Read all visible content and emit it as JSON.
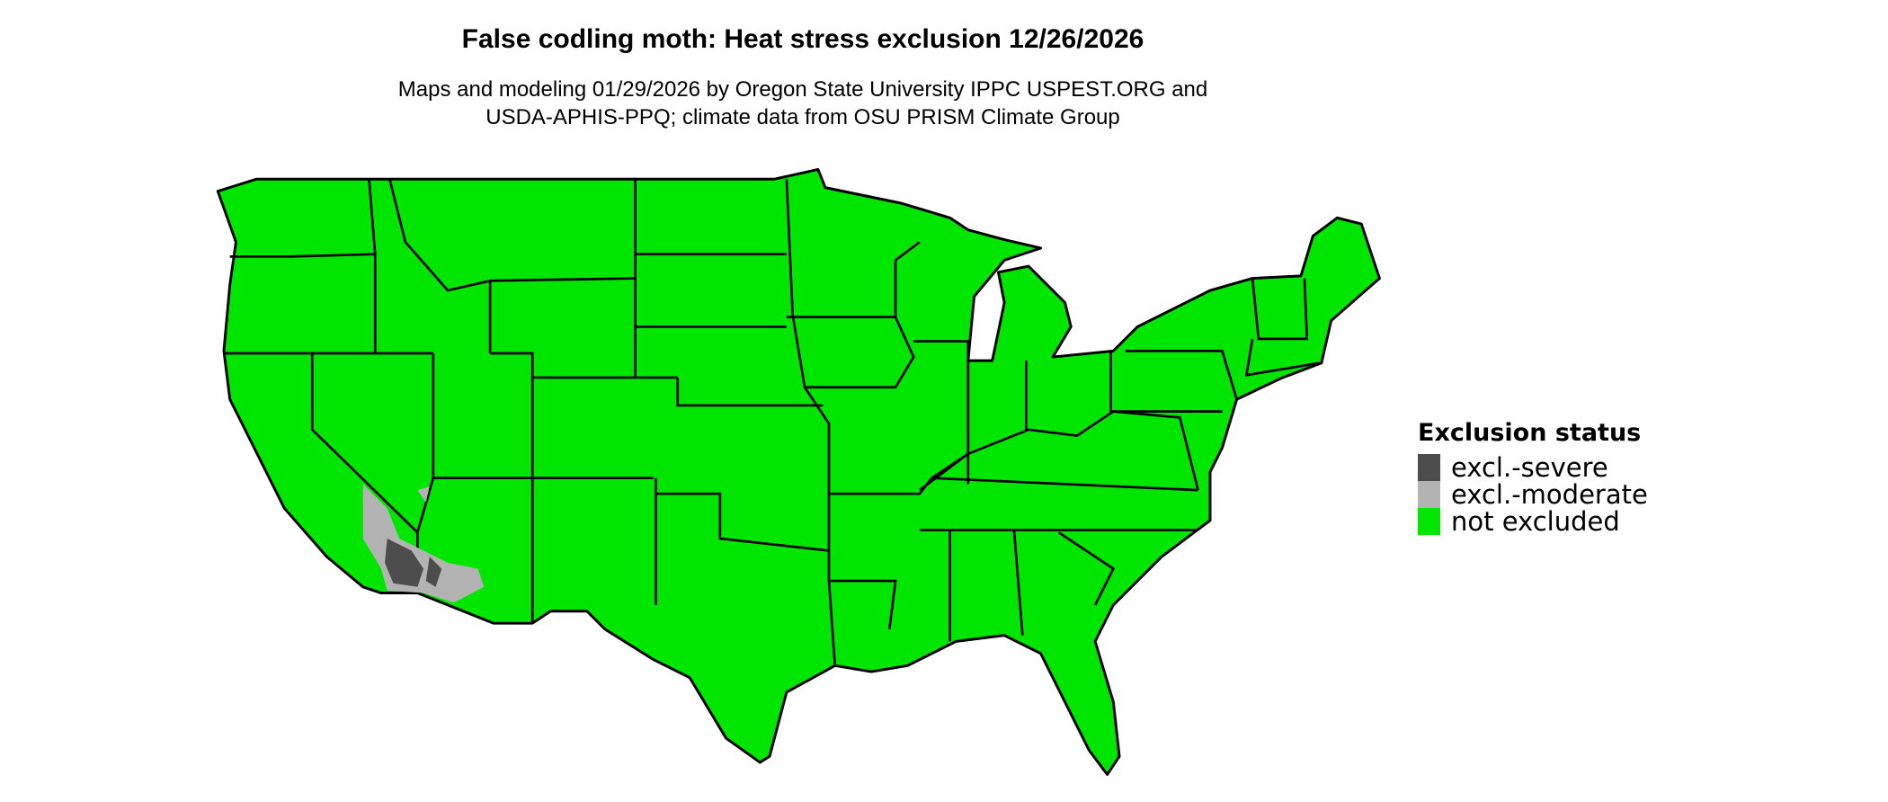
{
  "title": "False codling moth: Heat stress exclusion 12/26/2026",
  "subtitle_line1": "Maps and modeling 01/29/2026 by Oregon State University IPPC USPEST.ORG and",
  "subtitle_line2": "USDA-APHIS-PPQ; climate data from OSU PRISM Climate Group",
  "legend": {
    "title": "Exclusion status",
    "items": [
      {
        "label": "excl.-severe",
        "color": "#4d4d4d"
      },
      {
        "label": "excl.-moderate",
        "color": "#b3b3b3"
      },
      {
        "label": "not excluded",
        "color": "#00e600"
      }
    ]
  },
  "map": {
    "region": "Contiguous United States",
    "base_color": "#00e600",
    "border_color": "#000000"
  }
}
